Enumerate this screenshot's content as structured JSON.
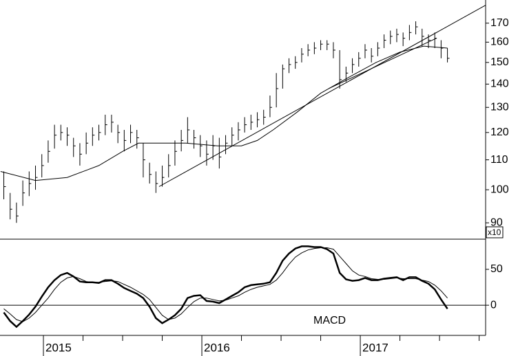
{
  "chart_data": [
    {
      "type": "ohlc",
      "log": true,
      "color": "#000000",
      "ylabel": "x10",
      "x": [
        2014.75,
        2014.79,
        2014.83,
        2014.87,
        2014.91,
        2014.95,
        2014.99,
        2015.03,
        2015.07,
        2015.11,
        2015.15,
        2015.19,
        2015.23,
        2015.27,
        2015.31,
        2015.35,
        2015.39,
        2015.43,
        2015.47,
        2015.51,
        2015.55,
        2015.59,
        2015.63,
        2015.67,
        2015.71,
        2015.75,
        2015.79,
        2015.83,
        2015.87,
        2015.91,
        2015.95,
        2015.99,
        2016.03,
        2016.07,
        2016.11,
        2016.15,
        2016.19,
        2016.23,
        2016.27,
        2016.31,
        2016.35,
        2016.39,
        2016.43,
        2016.47,
        2016.51,
        2016.55,
        2016.59,
        2016.63,
        2016.67,
        2016.71,
        2016.75,
        2016.79,
        2016.83,
        2016.87,
        2016.91,
        2016.95,
        2016.99,
        2017.03,
        2017.07,
        2017.11,
        2017.15,
        2017.19,
        2017.23,
        2017.27,
        2017.31,
        2017.35,
        2017.39,
        2017.43,
        2017.47,
        2017.51,
        2017.55
      ],
      "high": [
        106,
        99,
        96,
        103,
        106,
        108,
        112,
        117,
        123,
        123,
        122,
        118,
        116,
        120,
        122,
        123,
        127,
        127,
        123,
        121,
        123,
        121,
        116,
        109,
        106,
        108,
        112,
        117,
        121,
        126,
        121,
        119,
        117,
        119,
        118,
        119,
        122,
        124,
        126,
        127,
        128,
        129,
        135,
        145,
        149,
        152,
        153,
        157,
        159,
        160,
        161,
        161,
        160,
        156,
        148,
        152,
        155,
        159,
        157,
        160,
        164,
        166,
        167,
        165,
        169,
        171,
        167,
        164,
        165,
        161,
        157
      ],
      "low": [
        97,
        91,
        90,
        95,
        98,
        100,
        104,
        109,
        114,
        117,
        115,
        111,
        108,
        112,
        115,
        117,
        119,
        120,
        116,
        113,
        116,
        114,
        104,
        102,
        99,
        101,
        104,
        108,
        113,
        116,
        114,
        111,
        108,
        110,
        107,
        112,
        115,
        117,
        120,
        121,
        122,
        123,
        126,
        130,
        138,
        145,
        147,
        150,
        153,
        154,
        156,
        156,
        152,
        138,
        141,
        145,
        148,
        152,
        150,
        153,
        157,
        159,
        160,
        158,
        161,
        164,
        158,
        157,
        157,
        152,
        150
      ],
      "close": [
        101,
        94,
        92,
        99,
        102,
        104,
        108,
        113,
        119,
        120,
        119,
        115,
        112,
        116,
        119,
        120,
        123,
        124,
        120,
        117,
        120,
        118,
        110,
        105,
        102,
        104,
        108,
        113,
        117,
        121,
        118,
        115,
        112,
        115,
        111,
        116,
        119,
        121,
        123,
        124,
        125,
        126,
        130,
        138,
        147,
        149,
        150,
        154,
        156,
        157,
        159,
        159,
        156,
        142,
        145,
        149,
        152,
        156,
        153,
        157,
        161,
        163,
        164,
        162,
        165,
        168,
        163,
        161,
        162,
        157,
        152
      ],
      "moving_average": {
        "x": [
          2014.73,
          2014.95,
          2015.15,
          2015.35,
          2015.5,
          2015.6,
          2015.75,
          2015.9,
          2016.1,
          2016.25,
          2016.35,
          2016.45,
          2016.6,
          2016.75,
          2016.9,
          2017.1,
          2017.25,
          2017.4,
          2017.55
        ],
        "values": [
          106,
          103,
          104,
          108,
          113,
          116,
          116,
          116,
          115,
          115,
          117,
          121,
          128,
          136,
          142,
          150,
          155,
          158,
          157
        ]
      },
      "trendlines": [
        {
          "x": [
            2015.73,
            2017.791
          ],
          "values": [
            101,
            180
          ]
        },
        {
          "x": [
            2016.8,
            2017.48
          ],
          "values": [
            138,
            162
          ]
        }
      ],
      "xlim": [
        2014.726,
        2017.791
      ],
      "ylim": [
        86,
        183
      ],
      "yticks": [
        90,
        100,
        110,
        120,
        130,
        140,
        150,
        160,
        170
      ]
    },
    {
      "type": "line",
      "label": "MACD",
      "x": [
        2014.75,
        2014.79,
        2014.83,
        2014.87,
        2014.91,
        2014.95,
        2014.99,
        2015.03,
        2015.07,
        2015.11,
        2015.15,
        2015.19,
        2015.23,
        2015.27,
        2015.31,
        2015.35,
        2015.39,
        2015.43,
        2015.47,
        2015.51,
        2015.55,
        2015.59,
        2015.63,
        2015.67,
        2015.71,
        2015.75,
        2015.79,
        2015.83,
        2015.87,
        2015.91,
        2015.95,
        2015.99,
        2016.03,
        2016.07,
        2016.11,
        2016.15,
        2016.19,
        2016.23,
        2016.27,
        2016.31,
        2016.35,
        2016.39,
        2016.43,
        2016.47,
        2016.51,
        2016.55,
        2016.59,
        2016.63,
        2016.67,
        2016.71,
        2016.75,
        2016.79,
        2016.83,
        2016.87,
        2016.91,
        2016.95,
        2016.99,
        2017.03,
        2017.07,
        2017.11,
        2017.15,
        2017.19,
        2017.23,
        2017.27,
        2017.31,
        2017.35,
        2017.39,
        2017.43,
        2017.47,
        2017.51,
        2017.55
      ],
      "series": [
        {
          "color": "#000000",
          "values": [
            -10,
            -22,
            -30,
            -22,
            -13,
            -2,
            12,
            25,
            35,
            42,
            45,
            40,
            33,
            32,
            32,
            31,
            35,
            35,
            30,
            24,
            20,
            16,
            10,
            -2,
            -18,
            -25,
            -20,
            -14,
            -5,
            10,
            13,
            14,
            6,
            5,
            3,
            8,
            13,
            18,
            25,
            28,
            29,
            30,
            32,
            45,
            62,
            72,
            79,
            82,
            82,
            81,
            81,
            78,
            72,
            45,
            36,
            34,
            35,
            38,
            35,
            35,
            37,
            38,
            39,
            35,
            39,
            39,
            34,
            30,
            22,
            8,
            -5
          ]
        },
        {
          "color": "#000000",
          "values": [
            -5,
            -12,
            -20,
            -23,
            -18,
            -10,
            0,
            10,
            22,
            32,
            38,
            40,
            37,
            33,
            32,
            32,
            33,
            34,
            33,
            29,
            25,
            20,
            15,
            8,
            -3,
            -14,
            -20,
            -18,
            -12,
            -3,
            5,
            10,
            10,
            8,
            6,
            7,
            10,
            13,
            18,
            22,
            25,
            27,
            29,
            35,
            45,
            57,
            67,
            73,
            77,
            79,
            80,
            80,
            78,
            68,
            58,
            48,
            42,
            40,
            37,
            36,
            36,
            37,
            38,
            37,
            37,
            37,
            35,
            33,
            28,
            20,
            10
          ]
        }
      ],
      "xlim": [
        2014.726,
        2017.791
      ],
      "ylim": [
        -42,
        92
      ],
      "yticks": [
        0,
        50
      ],
      "xticks": [
        2015,
        2016,
        2017
      ],
      "xticks_minor": [
        2015.25,
        2015.5,
        2015.75,
        2016.25,
        2016.5,
        2016.75,
        2017.25,
        2017.5,
        2017.75
      ]
    }
  ]
}
